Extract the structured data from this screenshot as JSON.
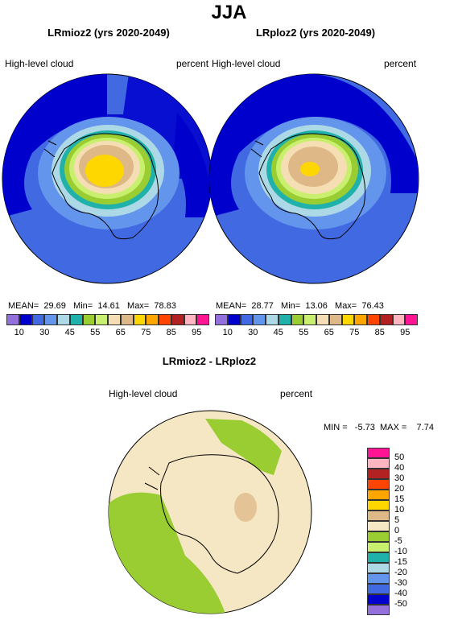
{
  "title": "JJA",
  "panels": [
    {
      "title": "LRmioz2 (yrs 2020-2049)",
      "left_label": "High-level cloud",
      "right_label": "percent",
      "stats": {
        "mean_label": "MEAN=",
        "mean": "29.69",
        "min_label": "Min=",
        "min": "14.61",
        "max_label": "Max=",
        "max": "78.83"
      }
    },
    {
      "title": "LRploz2 (yrs 2020-2049)",
      "left_label": "High-level cloud",
      "right_label": "percent",
      "stats": {
        "mean_label": "MEAN=",
        "mean": "28.77",
        "min_label": "Min=",
        "min": "13.06",
        "max_label": "Max=",
        "max": "76.43"
      }
    }
  ],
  "colorbar_top": {
    "colors": [
      "#9370db",
      "#0000cd",
      "#4169e1",
      "#6495ed",
      "#add8e6",
      "#20b2aa",
      "#9acd32",
      "#c8f06e",
      "#f5deb3",
      "#deb887",
      "#ffd700",
      "#ffa500",
      "#ff4500",
      "#b22222",
      "#ffb6c1",
      "#ff1493"
    ],
    "ticks": [
      "10",
      "30",
      "45",
      "55",
      "65",
      "75",
      "85",
      "95"
    ],
    "tick_positions": [
      1,
      3,
      5,
      7,
      9,
      11,
      13,
      15
    ]
  },
  "difference": {
    "title": "LRmioz2 - LRploz2",
    "left_label": "High-level cloud",
    "right_label": "percent",
    "minmax": "MIN =   -5.73  MAX =    7.74",
    "colorbar": {
      "colors": [
        "#ff1493",
        "#ffb6c1",
        "#b22222",
        "#ff4500",
        "#ffa500",
        "#ffd700",
        "#deb887",
        "#f5e6c4",
        "#9acd32",
        "#c8f06e",
        "#20b2aa",
        "#add8e6",
        "#6495ed",
        "#4169e1",
        "#0000cd",
        "#9370db"
      ],
      "ticks": [
        "50",
        "40",
        "30",
        "20",
        "15",
        "10",
        "5",
        "0",
        "-5",
        "-10",
        "-15",
        "-20",
        "-30",
        "-40",
        "-50"
      ]
    }
  }
}
